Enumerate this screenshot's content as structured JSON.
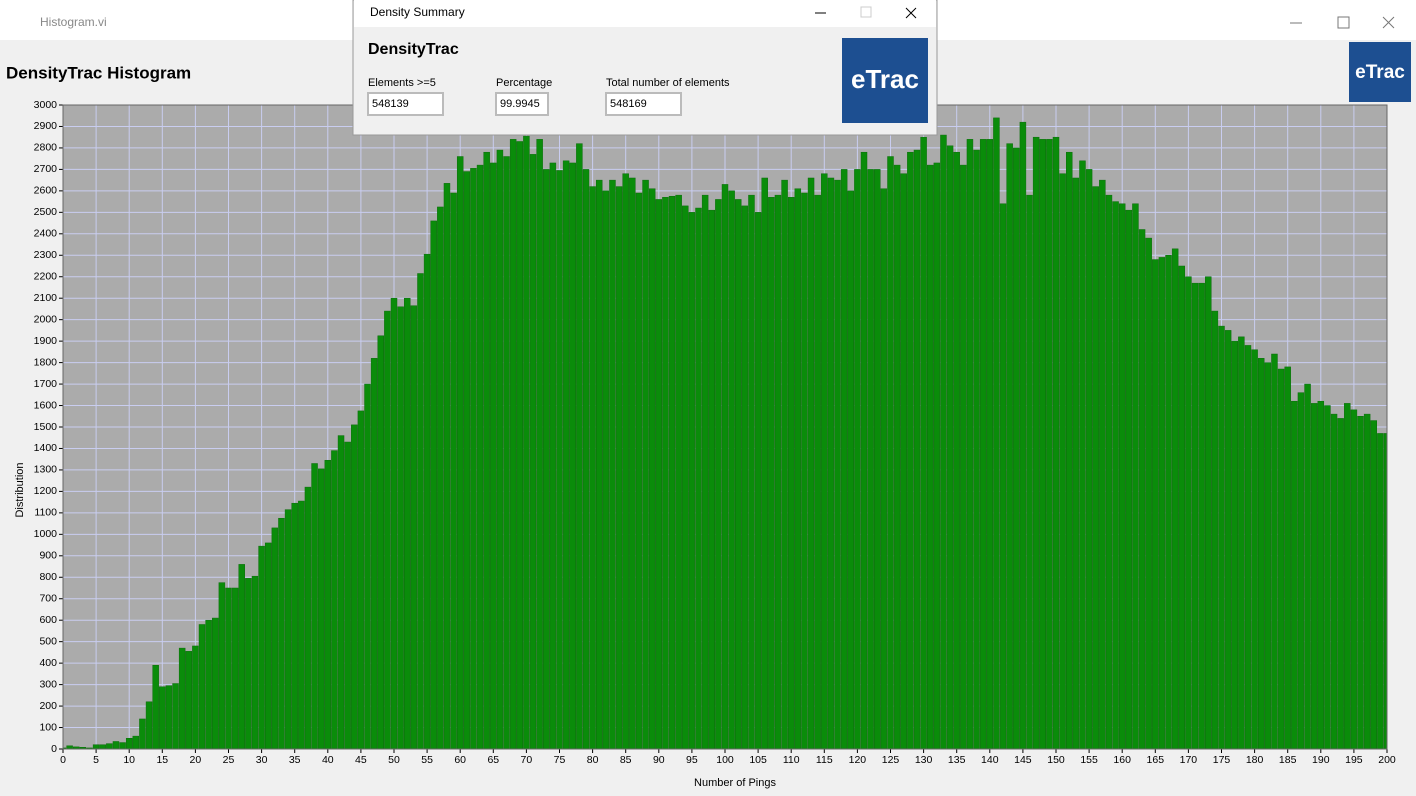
{
  "window": {
    "title": "Histogram.vi",
    "logo": "eTrac"
  },
  "dialog": {
    "title": "Density Summary",
    "heading": "DensityTrac",
    "logo": "eTrac",
    "fields": [
      {
        "label": "Elements >=5",
        "value": "548139"
      },
      {
        "label": "Percentage",
        "value": "99.9945"
      },
      {
        "label": "Total number of elements",
        "value": "548169"
      }
    ]
  },
  "chart_data": {
    "type": "bar",
    "title": "DensityTrac Histogram",
    "x_label": "Number of Pings",
    "y_label": "Distribution",
    "color": "#0a8c0a",
    "grid": true,
    "x": [
      0,
      1,
      2,
      3,
      4,
      5,
      6,
      7,
      8,
      9,
      10,
      11,
      12,
      13,
      14,
      15,
      16,
      17,
      18,
      19,
      20,
      21,
      22,
      23,
      24,
      25,
      26,
      27,
      28,
      29,
      30,
      31,
      32,
      33,
      34,
      35,
      36,
      37,
      38,
      39,
      40,
      41,
      42,
      43,
      44,
      45,
      46,
      47,
      48,
      49,
      50,
      51,
      52,
      53,
      54,
      55,
      56,
      57,
      58,
      59,
      60,
      61,
      62,
      63,
      64,
      65,
      66,
      67,
      68,
      69,
      70,
      71,
      72,
      73,
      74,
      75,
      76,
      77,
      78,
      79,
      80,
      81,
      82,
      83,
      84,
      85,
      86,
      87,
      88,
      89,
      90,
      91,
      92,
      93,
      94,
      95,
      96,
      97,
      98,
      99,
      100,
      101,
      102,
      103,
      104,
      105,
      106,
      107,
      108,
      109,
      110,
      111,
      112,
      113,
      114,
      115,
      116,
      117,
      118,
      119,
      120,
      121,
      122,
      123,
      124,
      125,
      126,
      127,
      128,
      129,
      130,
      131,
      132,
      133,
      134,
      135,
      136,
      137,
      138,
      139,
      140,
      141,
      142,
      143,
      144,
      145,
      146,
      147,
      148,
      149,
      150,
      151,
      152,
      153,
      154,
      155,
      156,
      157,
      158,
      159,
      160,
      161,
      162,
      163,
      164,
      165,
      166,
      167,
      168,
      169,
      170,
      171,
      172,
      173,
      174,
      175,
      176,
      177,
      178,
      179,
      180,
      181,
      182,
      183,
      184,
      185,
      186,
      187,
      188,
      189,
      190,
      191,
      192,
      193,
      194,
      195,
      196,
      197,
      198,
      199,
      200
    ],
    "values": [
      5,
      15,
      10,
      8,
      5,
      20,
      20,
      25,
      35,
      30,
      50,
      60,
      140,
      220,
      390,
      290,
      295,
      305,
      470,
      455,
      480,
      580,
      600,
      610,
      775,
      750,
      750,
      860,
      795,
      805,
      945,
      960,
      1030,
      1075,
      1115,
      1145,
      1155,
      1220,
      1330,
      1305,
      1345,
      1390,
      1460,
      1430,
      1510,
      1575,
      1700,
      1820,
      1925,
      2040,
      2100,
      2060,
      2100,
      2065,
      2215,
      2305,
      2460,
      2525,
      2635,
      2590,
      2760,
      2690,
      2705,
      2720,
      2780,
      2730,
      2790,
      2760,
      2840,
      2830,
      2855,
      2770,
      2840,
      2700,
      2730,
      2695,
      2740,
      2730,
      2820,
      2700,
      2620,
      2650,
      2600,
      2650,
      2620,
      2680,
      2660,
      2590,
      2650,
      2610,
      2560,
      2570,
      2575,
      2580,
      2530,
      2500,
      2520,
      2580,
      2510,
      2560,
      2630,
      2600,
      2560,
      2530,
      2580,
      2500,
      2660,
      2570,
      2580,
      2650,
      2570,
      2610,
      2590,
      2660,
      2580,
      2680,
      2660,
      2650,
      2700,
      2600,
      2700,
      2780,
      2700,
      2700,
      2610,
      2760,
      2720,
      2680,
      2780,
      2790,
      2850,
      2720,
      2730,
      2860,
      2810,
      2780,
      2720,
      2840,
      2790,
      2840,
      2840,
      2940,
      2540,
      2820,
      2800,
      2920,
      2580,
      2850,
      2840,
      2840,
      2850,
      2680,
      2780,
      2660,
      2740,
      2700,
      2620,
      2650,
      2580,
      2550,
      2540,
      2510,
      2540,
      2420,
      2380,
      2280,
      2290,
      2300,
      2330,
      2250,
      2200,
      2170,
      2170,
      2200,
      2040,
      1970,
      1950,
      1900,
      1920,
      1880,
      1860,
      1820,
      1800,
      1840,
      1770,
      1780,
      1620,
      1660,
      1700,
      1610,
      1620,
      1600,
      1560,
      1540,
      1610,
      1580,
      1550,
      1560,
      1530,
      1470,
      1470
    ],
    "xlim": [
      0,
      200
    ],
    "xticks": [
      0,
      5,
      10,
      15,
      20,
      25,
      30,
      35,
      40,
      45,
      50,
      55,
      60,
      65,
      70,
      75,
      80,
      85,
      90,
      95,
      100,
      105,
      110,
      115,
      120,
      125,
      130,
      135,
      140,
      145,
      150,
      155,
      160,
      165,
      170,
      175,
      180,
      185,
      190,
      195,
      200
    ],
    "ylim": [
      0,
      3000
    ],
    "yticks": [
      0,
      100,
      200,
      300,
      400,
      500,
      600,
      700,
      800,
      900,
      1000,
      1100,
      1200,
      1300,
      1400,
      1500,
      1600,
      1700,
      1800,
      1900,
      2000,
      2100,
      2200,
      2300,
      2400,
      2500,
      2600,
      2700,
      2800,
      2900,
      3000
    ]
  }
}
